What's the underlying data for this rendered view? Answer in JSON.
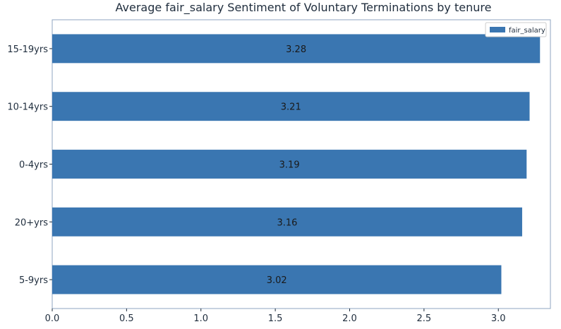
{
  "chart_data": {
    "type": "bar",
    "orientation": "horizontal",
    "title": "Average fair_salary Sentiment of Voluntary Terminations by tenure",
    "xlabel": "",
    "ylabel": "",
    "categories": [
      "15-19yrs",
      "10-14yrs",
      "0-4yrs",
      "20+yrs",
      "5-9yrs"
    ],
    "series": [
      {
        "name": "fair_salary",
        "values": [
          3.28,
          3.21,
          3.19,
          3.16,
          3.02
        ],
        "data_labels": [
          "3.28",
          "3.21",
          "3.19",
          "3.16",
          "3.02"
        ]
      }
    ],
    "xlim": [
      0,
      3.35
    ],
    "xticks": [
      "0.0",
      "0.5",
      "1.0",
      "1.5",
      "2.0",
      "2.5",
      "3.0"
    ],
    "grid": false,
    "legend_position": "top-right",
    "bar_color": "#3a76b1"
  }
}
